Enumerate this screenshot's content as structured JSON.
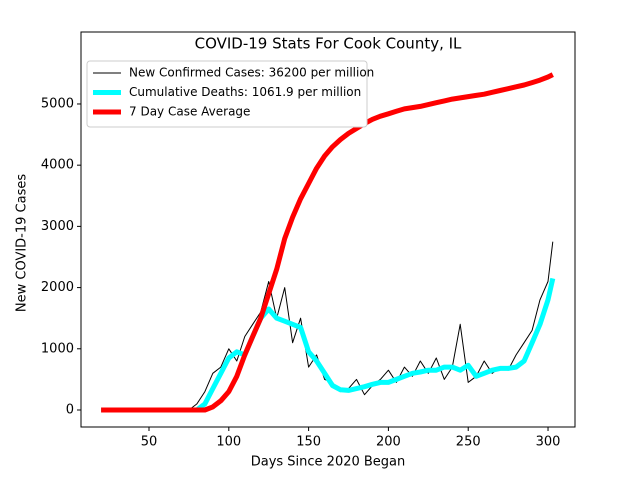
{
  "chart_data": {
    "type": "line",
    "title": "COVID-19 Stats For Cook County, IL",
    "xlabel": "Days Since 2020 Began",
    "ylabel": "New COVID-19 Cases",
    "x": [
      20,
      25,
      30,
      35,
      40,
      45,
      50,
      55,
      60,
      65,
      70,
      75,
      80,
      85,
      90,
      95,
      100,
      105,
      110,
      115,
      120,
      125,
      130,
      135,
      140,
      145,
      150,
      155,
      160,
      165,
      170,
      175,
      180,
      185,
      190,
      195,
      200,
      205,
      210,
      215,
      220,
      225,
      230,
      235,
      240,
      245,
      250,
      255,
      260,
      265,
      270,
      275,
      280,
      285,
      290,
      295,
      300,
      303
    ],
    "series": [
      {
        "name": "New Confirmed Cases: 36200 per million",
        "color": "#000000",
        "width": 1,
        "values": [
          0,
          0,
          0,
          0,
          0,
          0,
          0,
          0,
          0,
          0,
          0,
          0,
          100,
          300,
          600,
          700,
          1000,
          800,
          1200,
          1400,
          1600,
          2100,
          1500,
          2000,
          1100,
          1500,
          700,
          900,
          500,
          450,
          300,
          350,
          500,
          250,
          400,
          500,
          650,
          450,
          700,
          550,
          800,
          600,
          850,
          500,
          700,
          1400,
          450,
          550,
          800,
          600,
          700,
          650,
          900,
          1100,
          1300,
          1800,
          2100,
          2750
        ]
      },
      {
        "name": "Cumulative Deaths: 1061.9 per million",
        "color": "#00ffff",
        "width": 5,
        "values": [
          0,
          0,
          0,
          0,
          0,
          0,
          0,
          0,
          0,
          0,
          0,
          0,
          0,
          100,
          350,
          600,
          850,
          950,
          900,
          1200,
          1500,
          1650,
          1500,
          1450,
          1400,
          1350,
          950,
          800,
          600,
          400,
          330,
          320,
          350,
          380,
          420,
          450,
          450,
          500,
          550,
          600,
          620,
          650,
          650,
          700,
          700,
          650,
          730,
          550,
          600,
          650,
          680,
          680,
          700,
          800,
          1100,
          1400,
          1800,
          2150
        ]
      },
      {
        "name": "7 Day Case Average",
        "color": "#ff0000",
        "width": 5,
        "values": [
          0,
          0,
          0,
          0,
          0,
          0,
          0,
          0,
          0,
          0,
          0,
          0,
          0,
          0,
          50,
          150,
          300,
          550,
          900,
          1200,
          1500,
          1900,
          2300,
          2800,
          3150,
          3450,
          3700,
          3950,
          4150,
          4300,
          4420,
          4520,
          4600,
          4680,
          4750,
          4800,
          4840,
          4880,
          4920,
          4940,
          4960,
          4990,
          5020,
          5050,
          5080,
          5100,
          5120,
          5140,
          5160,
          5190,
          5220,
          5250,
          5280,
          5310,
          5350,
          5390,
          5440,
          5480
        ]
      }
    ],
    "xlim": [
      7.4,
      316.9
    ],
    "xticks": [
      50,
      100,
      150,
      200,
      250,
      300
    ],
    "ylim": [
      -278,
      6176
    ],
    "yticks": [
      0,
      1000,
      2000,
      3000,
      4000,
      5000
    ],
    "legend": "upper left"
  }
}
